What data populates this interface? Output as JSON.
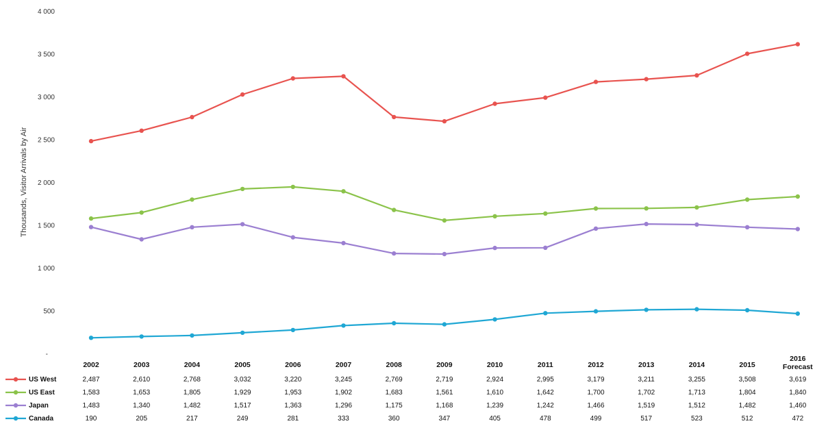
{
  "chart_data": {
    "type": "line",
    "ylabel": "Thousands, Visitor Arrivals by Air",
    "ylim": [
      0,
      4000
    ],
    "yticks": [
      "",
      "500",
      "1 000",
      "1 500",
      "2 000",
      "2 500",
      "3 000",
      "3 500",
      "4 000"
    ],
    "categories": [
      "2002",
      "2003",
      "2004",
      "2005",
      "2006",
      "2007",
      "2008",
      "2009",
      "2010",
      "2011",
      "2012",
      "2013",
      "2014",
      "2015",
      "2016 Forecast"
    ],
    "category_lines": [
      [
        "2002"
      ],
      [
        "2003"
      ],
      [
        "2004"
      ],
      [
        "2005"
      ],
      [
        "2006"
      ],
      [
        "2007"
      ],
      [
        "2008"
      ],
      [
        "2009"
      ],
      [
        "2010"
      ],
      [
        "2011"
      ],
      [
        "2012"
      ],
      [
        "2013"
      ],
      [
        "2014"
      ],
      [
        "2015"
      ],
      [
        "2016",
        "Forecast"
      ]
    ],
    "legend_placement": "table-below",
    "grid": false,
    "series": [
      {
        "name": "US West",
        "color": "#e8534f",
        "values": [
          2487,
          2610,
          2768,
          3032,
          3220,
          3245,
          2769,
          2719,
          2924,
          2995,
          3179,
          3211,
          3255,
          3508,
          3619
        ],
        "labels": [
          "2,487",
          "2,610",
          "2,768",
          "3,032",
          "3,220",
          "3,245",
          "2,769",
          "2,719",
          "2,924",
          "2,995",
          "3,179",
          "3,211",
          "3,255",
          "3,508",
          "3,619"
        ]
      },
      {
        "name": "US East",
        "color": "#8bc34a",
        "values": [
          1583,
          1653,
          1805,
          1929,
          1953,
          1902,
          1683,
          1561,
          1610,
          1642,
          1700,
          1702,
          1713,
          1804,
          1840
        ],
        "labels": [
          "1,583",
          "1,653",
          "1,805",
          "1,929",
          "1,953",
          "1,902",
          "1,683",
          "1,561",
          "1,610",
          "1,642",
          "1,700",
          "1,702",
          "1,713",
          "1,804",
          "1,840"
        ]
      },
      {
        "name": "Japan",
        "color": "#9b7fd1",
        "values": [
          1483,
          1340,
          1482,
          1517,
          1363,
          1296,
          1175,
          1168,
          1239,
          1242,
          1466,
          1519,
          1512,
          1482,
          1460
        ],
        "labels": [
          "1,483",
          "1,340",
          "1,482",
          "1,517",
          "1,363",
          "1,296",
          "1,175",
          "1,168",
          "1,239",
          "1,242",
          "1,466",
          "1,519",
          "1,512",
          "1,482",
          "1,460"
        ]
      },
      {
        "name": "Canada",
        "color": "#1fa7d4",
        "values": [
          190,
          205,
          217,
          249,
          281,
          333,
          360,
          347,
          405,
          478,
          499,
          517,
          523,
          512,
          472
        ],
        "labels": [
          "190",
          "205",
          "217",
          "249",
          "281",
          "333",
          "360",
          "347",
          "405",
          "478",
          "499",
          "517",
          "523",
          "512",
          "472"
        ]
      }
    ]
  }
}
